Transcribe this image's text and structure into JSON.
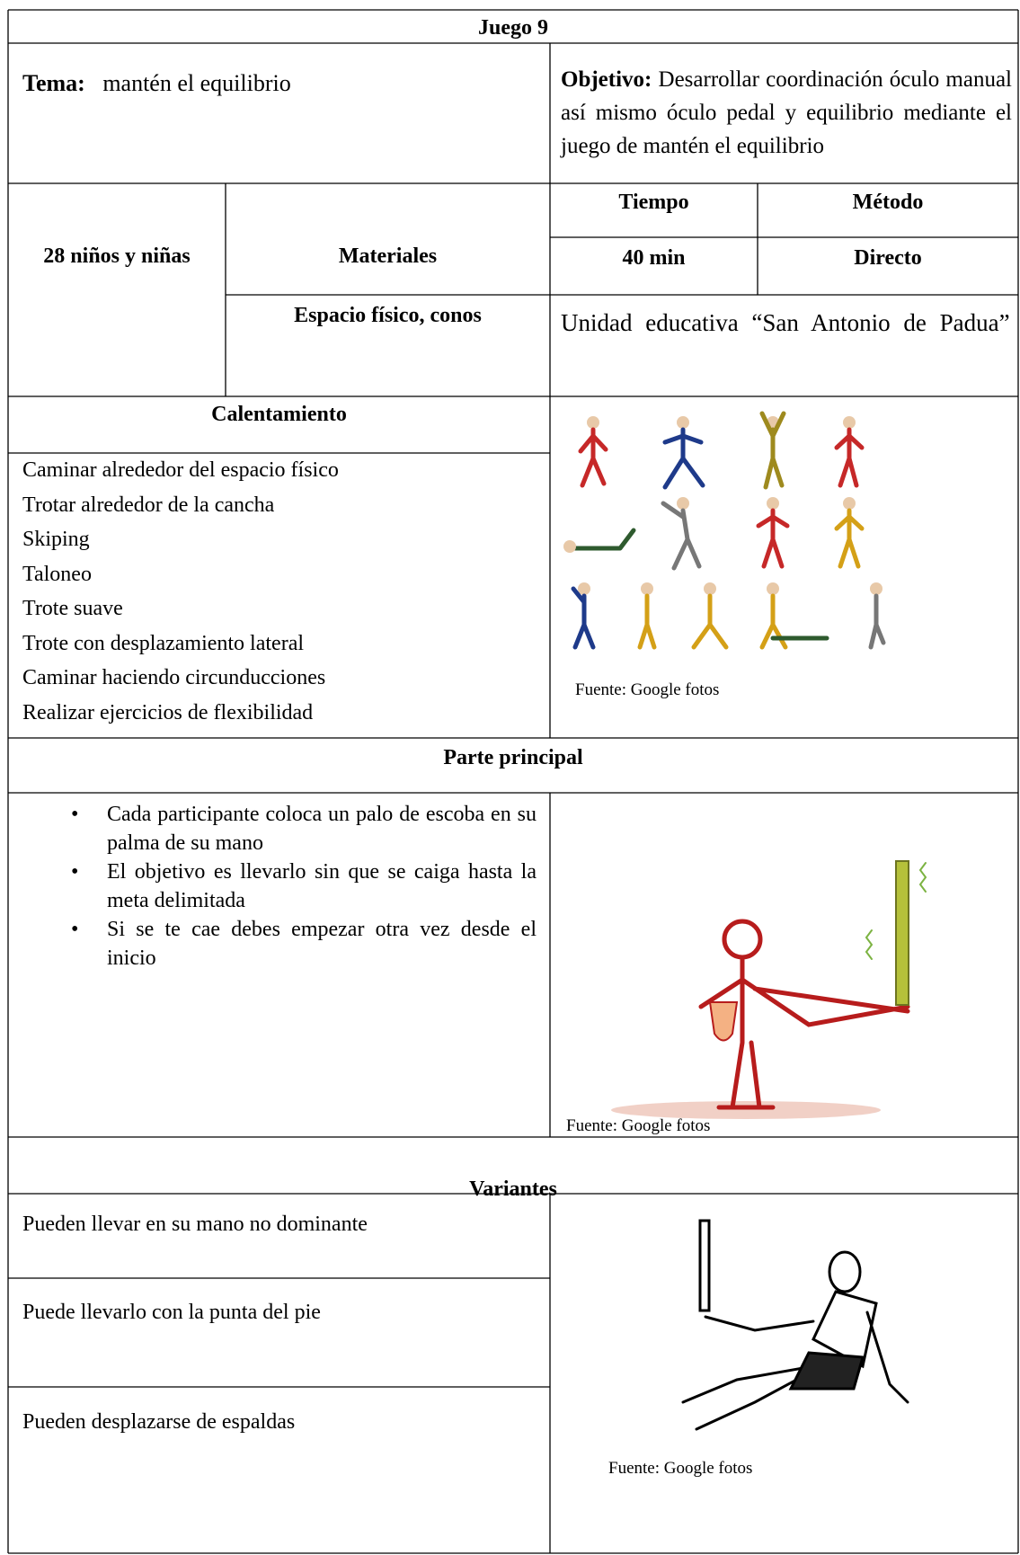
{
  "header": {
    "title": "Juego 9"
  },
  "tema": {
    "label": "Tema:",
    "value": "mantén el equilibrio"
  },
  "objetivo": {
    "label": "Objetivo:",
    "value": "Desarrollar coordinación óculo manual así mismo óculo pedal y equilibrio mediante el juego de mantén el equilibrio"
  },
  "participantes": "28 niños y niñas",
  "materiales": {
    "label": "Materiales",
    "value": "Espacio físico, conos"
  },
  "tiempo": {
    "label": "Tiempo",
    "value": "40 min"
  },
  "metodo": {
    "label": "Método",
    "value": "Directo"
  },
  "lugar": "Unidad educativa “San Antonio de Padua”",
  "calentamiento": {
    "title": "Calentamiento",
    "items": [
      "Caminar alrededor del espacio físico",
      "Trotar alrededor de la cancha",
      "Skiping",
      "Taloneo",
      "Trote suave",
      "Trote con desplazamiento lateral",
      "Caminar haciendo circunducciones",
      "Realizar ejercicios de flexibilidad"
    ],
    "image_caption": "Fuente: Google fotos"
  },
  "parte_principal": {
    "title": "Parte principal",
    "items": [
      "Cada participante coloca un palo de escoba en su palma de su mano",
      "El objetivo es llevarlo sin que se caiga hasta la meta delimitada",
      "Si se te cae debes empezar otra vez desde el inicio"
    ],
    "image_caption": "Fuente: Google fotos"
  },
  "variantes": {
    "title": "Variantes",
    "items": [
      "Pueden llevar en su mano no dominante",
      "Puede llevarlo con la punta del pie",
      "Pueden desplazarse de espaldas"
    ],
    "image_caption": "Fuente: Google fotos"
  }
}
